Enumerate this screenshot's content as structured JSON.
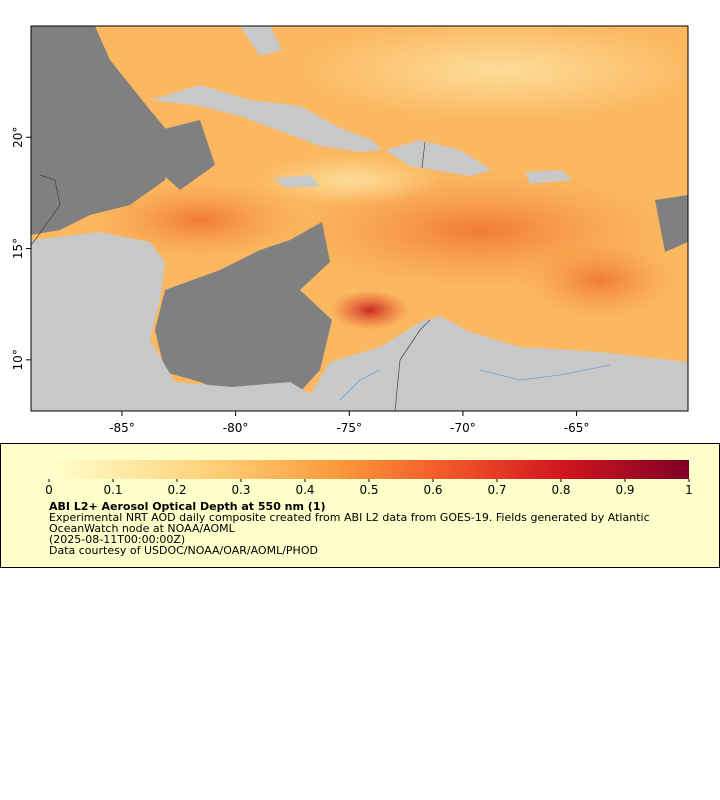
{
  "map": {
    "xlim": [
      -89,
      -60.1
    ],
    "ylim": [
      7.7,
      25
    ],
    "xticks": [
      {
        "value": -85,
        "label": "-85°"
      },
      {
        "value": -80,
        "label": "-80°"
      },
      {
        "value": -75,
        "label": "-75°"
      },
      {
        "value": -70,
        "label": "-70°"
      },
      {
        "value": -65,
        "label": "-65°"
      }
    ],
    "yticks": [
      {
        "value": 10,
        "label": "10°"
      },
      {
        "value": 15,
        "label": "15°"
      },
      {
        "value": 20,
        "label": "20°"
      }
    ]
  },
  "colorbar": {
    "range": [
      0,
      1
    ],
    "ticks": [
      0,
      0.1,
      0.2,
      0.3,
      0.4,
      0.5,
      0.6,
      0.7,
      0.8,
      0.9,
      1
    ]
  },
  "legend": {
    "title": "ABI L2+ Aerosol Optical Depth at 550 nm (1)",
    "lines": [
      "Experimental NRT AOD daily composite created from ABI L2 data from GOES-19. Fields generated by Atlantic OceanWatch node at NOAA/AOML",
      "(2025-08-11T00:00:00Z)",
      "Data courtesy of USDOC/NOAA/OAR/AOML/PHOD"
    ]
  }
}
